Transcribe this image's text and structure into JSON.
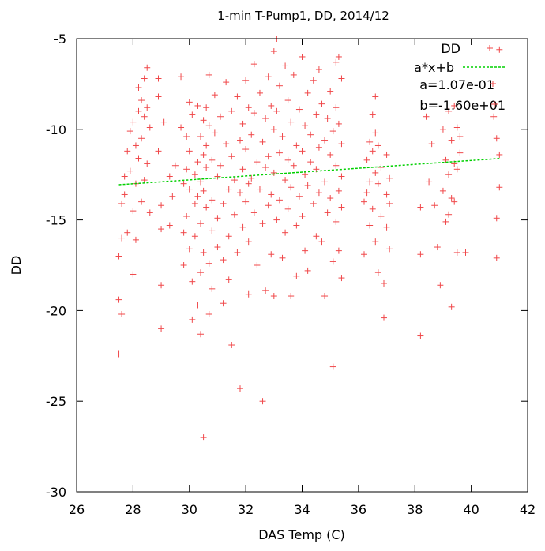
{
  "chart_data": {
    "type": "scatter",
    "title": "1-min T-Pump1, DD, 2014/12",
    "xlabel": "DAS Temp (C)",
    "ylabel": "DD",
    "xlim": [
      26,
      42
    ],
    "ylim": [
      -30,
      -5
    ],
    "xticks": [
      "26",
      "28",
      "30",
      "32",
      "34",
      "36",
      "38",
      "40",
      "42"
    ],
    "yticks": [
      "-5",
      "-10",
      "-15",
      "-20",
      "-25",
      "-30"
    ],
    "grid": false,
    "legend_position": "top-right",
    "legend": [
      {
        "label": "DD",
        "marker": "plus",
        "color": "#f0484a"
      },
      {
        "label": "a*x+b",
        "marker": "dashed-line",
        "color": "#00d000"
      },
      {
        "label": "a=1.07e-01",
        "marker": "plus",
        "color": "#f0484a"
      },
      {
        "label": "b=-1.60e+01",
        "marker": "plus",
        "color": "#f0484a"
      }
    ],
    "fit": {
      "a": 0.107,
      "b": -16.0,
      "x_range": [
        27.5,
        41.0
      ],
      "color": "#00d000"
    },
    "series": [
      {
        "name": "DD",
        "color": "#f0484a",
        "points": [
          [
            27.5,
            -22.4
          ],
          [
            27.5,
            -19.4
          ],
          [
            27.5,
            -17.0
          ],
          [
            27.6,
            -16.0
          ],
          [
            27.6,
            -14.1
          ],
          [
            27.7,
            -13.6
          ],
          [
            27.7,
            -12.6
          ],
          [
            27.8,
            -11.2
          ],
          [
            27.6,
            -20.2
          ],
          [
            27.8,
            -15.7
          ],
          [
            27.9,
            -10.1
          ],
          [
            27.9,
            -12.3
          ],
          [
            28.0,
            -9.6
          ],
          [
            28.0,
            -14.5
          ],
          [
            28.0,
            -18.0
          ],
          [
            28.1,
            -10.9
          ],
          [
            28.1,
            -13.0
          ],
          [
            28.1,
            -16.1
          ],
          [
            28.2,
            -9.0
          ],
          [
            28.2,
            -11.6
          ],
          [
            28.2,
            -7.7
          ],
          [
            28.3,
            -8.4
          ],
          [
            28.3,
            -10.5
          ],
          [
            28.3,
            -14.0
          ],
          [
            28.4,
            -7.2
          ],
          [
            28.4,
            -9.3
          ],
          [
            28.4,
            -12.8
          ],
          [
            28.5,
            -6.6
          ],
          [
            28.5,
            -8.8
          ],
          [
            28.5,
            -11.9
          ],
          [
            28.6,
            -9.9
          ],
          [
            28.6,
            -14.6
          ],
          [
            28.9,
            -7.2
          ],
          [
            28.9,
            -8.2
          ],
          [
            28.9,
            -11.2
          ],
          [
            29.0,
            -14.2
          ],
          [
            29.0,
            -15.5
          ],
          [
            29.0,
            -18.6
          ],
          [
            29.0,
            -21.0
          ],
          [
            29.1,
            -9.6
          ],
          [
            29.3,
            -12.6
          ],
          [
            29.3,
            -15.3
          ],
          [
            29.4,
            -13.7
          ],
          [
            29.5,
            -12.0
          ],
          [
            29.7,
            -7.1
          ],
          [
            29.7,
            -9.9
          ],
          [
            29.8,
            -13.0
          ],
          [
            29.8,
            -15.7
          ],
          [
            29.8,
            -17.5
          ],
          [
            29.9,
            -10.4
          ],
          [
            29.9,
            -12.2
          ],
          [
            29.9,
            -14.8
          ],
          [
            30.0,
            -8.5
          ],
          [
            30.0,
            -11.2
          ],
          [
            30.0,
            -13.3
          ],
          [
            30.0,
            -16.6
          ],
          [
            30.1,
            -18.4
          ],
          [
            30.1,
            -20.5
          ],
          [
            30.1,
            -9.2
          ],
          [
            30.2,
            -12.5
          ],
          [
            30.2,
            -14.1
          ],
          [
            30.2,
            -15.9
          ],
          [
            30.3,
            -8.7
          ],
          [
            30.3,
            -11.8
          ],
          [
            30.3,
            -13.7
          ],
          [
            30.3,
            -19.7
          ],
          [
            30.4,
            -10.4
          ],
          [
            30.4,
            -12.9
          ],
          [
            30.4,
            -15.2
          ],
          [
            30.4,
            -17.9
          ],
          [
            30.4,
            -21.3
          ],
          [
            30.5,
            -27.0
          ],
          [
            30.5,
            -9.5
          ],
          [
            30.5,
            -11.4
          ],
          [
            30.5,
            -13.4
          ],
          [
            30.5,
            -16.8
          ],
          [
            30.6,
            -8.8
          ],
          [
            30.6,
            -10.9
          ],
          [
            30.6,
            -12.1
          ],
          [
            30.6,
            -14.3
          ],
          [
            30.7,
            -7.0
          ],
          [
            30.7,
            -9.8
          ],
          [
            30.7,
            -17.4
          ],
          [
            30.7,
            -20.2
          ],
          [
            30.8,
            -11.7
          ],
          [
            30.8,
            -13.9
          ],
          [
            30.8,
            -15.6
          ],
          [
            30.8,
            -18.8
          ],
          [
            30.9,
            -8.1
          ],
          [
            30.9,
            -10.2
          ],
          [
            31.0,
            -12.6
          ],
          [
            31.0,
            -14.9
          ],
          [
            31.0,
            -16.5
          ],
          [
            31.1,
            -9.3
          ],
          [
            31.1,
            -12.0
          ],
          [
            31.2,
            -14.1
          ],
          [
            31.2,
            -17.2
          ],
          [
            31.2,
            -19.6
          ],
          [
            31.3,
            -7.4
          ],
          [
            31.3,
            -10.8
          ],
          [
            31.4,
            -13.3
          ],
          [
            31.4,
            -15.9
          ],
          [
            31.4,
            -18.3
          ],
          [
            31.5,
            -9.0
          ],
          [
            31.5,
            -11.5
          ],
          [
            31.5,
            -21.9
          ],
          [
            31.6,
            -12.8
          ],
          [
            31.6,
            -14.7
          ],
          [
            31.7,
            -8.2
          ],
          [
            31.7,
            -16.8
          ],
          [
            31.8,
            -10.6
          ],
          [
            31.8,
            -13.5
          ],
          [
            31.8,
            -24.3
          ],
          [
            31.9,
            -9.7
          ],
          [
            31.9,
            -12.2
          ],
          [
            31.9,
            -15.4
          ],
          [
            32.0,
            -7.3
          ],
          [
            32.0,
            -11.1
          ],
          [
            32.0,
            -14.0
          ],
          [
            32.1,
            -8.8
          ],
          [
            32.1,
            -13.0
          ],
          [
            32.1,
            -16.2
          ],
          [
            32.1,
            -19.1
          ],
          [
            32.2,
            -10.3
          ],
          [
            32.2,
            -12.7
          ],
          [
            32.3,
            -6.4
          ],
          [
            32.3,
            -9.1
          ],
          [
            32.3,
            -14.6
          ],
          [
            32.4,
            -11.8
          ],
          [
            32.4,
            -17.5
          ],
          [
            32.5,
            -8.0
          ],
          [
            32.5,
            -13.3
          ],
          [
            32.6,
            -10.7
          ],
          [
            32.6,
            -15.2
          ],
          [
            32.6,
            -25.0
          ],
          [
            32.7,
            -9.4
          ],
          [
            32.7,
            -12.1
          ],
          [
            32.7,
            -18.9
          ],
          [
            32.8,
            -7.1
          ],
          [
            32.8,
            -11.5
          ],
          [
            32.8,
            -14.2
          ],
          [
            32.9,
            -8.7
          ],
          [
            32.9,
            -13.6
          ],
          [
            32.9,
            -16.9
          ],
          [
            33.0,
            -5.7
          ],
          [
            33.0,
            -10.0
          ],
          [
            33.0,
            -12.4
          ],
          [
            33.0,
            -19.2
          ],
          [
            33.1,
            -5.0
          ],
          [
            33.1,
            -9.0
          ],
          [
            33.1,
            -15.0
          ],
          [
            33.2,
            -7.6
          ],
          [
            33.2,
            -11.3
          ],
          [
            33.2,
            -13.9
          ],
          [
            33.3,
            -10.4
          ],
          [
            33.3,
            -17.1
          ],
          [
            33.4,
            -6.5
          ],
          [
            33.4,
            -12.8
          ],
          [
            33.4,
            -15.7
          ],
          [
            33.5,
            -8.4
          ],
          [
            33.5,
            -11.7
          ],
          [
            33.5,
            -14.4
          ],
          [
            33.6,
            -9.6
          ],
          [
            33.6,
            -13.2
          ],
          [
            33.6,
            -19.2
          ],
          [
            33.7,
            -7.0
          ],
          [
            33.7,
            -12.0
          ],
          [
            33.8,
            -10.9
          ],
          [
            33.8,
            -15.3
          ],
          [
            33.8,
            -18.1
          ],
          [
            33.9,
            -8.9
          ],
          [
            33.9,
            -13.7
          ],
          [
            34.0,
            -6.0
          ],
          [
            34.0,
            -11.2
          ],
          [
            34.0,
            -14.8
          ],
          [
            34.1,
            -9.8
          ],
          [
            34.1,
            -12.5
          ],
          [
            34.1,
            -16.7
          ],
          [
            34.2,
            -8.0
          ],
          [
            34.2,
            -13.1
          ],
          [
            34.2,
            -17.8
          ],
          [
            34.3,
            -10.3
          ],
          [
            34.3,
            -11.8
          ],
          [
            34.4,
            -7.3
          ],
          [
            34.4,
            -14.1
          ],
          [
            34.5,
            -9.2
          ],
          [
            34.5,
            -12.2
          ],
          [
            34.5,
            -15.9
          ],
          [
            34.6,
            -6.7
          ],
          [
            34.6,
            -11.0
          ],
          [
            34.6,
            -13.5
          ],
          [
            34.7,
            -8.6
          ],
          [
            34.7,
            -16.2
          ],
          [
            34.8,
            -10.6
          ],
          [
            34.8,
            -12.9
          ],
          [
            34.8,
            -19.2
          ],
          [
            34.9,
            -9.4
          ],
          [
            34.9,
            -14.6
          ],
          [
            35.0,
            -7.9
          ],
          [
            35.0,
            -11.4
          ],
          [
            35.0,
            -13.8
          ],
          [
            35.1,
            -10.1
          ],
          [
            35.1,
            -17.3
          ],
          [
            35.1,
            -23.1
          ],
          [
            35.2,
            -6.3
          ],
          [
            35.2,
            -8.8
          ],
          [
            35.2,
            -12.0
          ],
          [
            35.2,
            -15.1
          ],
          [
            35.3,
            -6.0
          ],
          [
            35.3,
            -9.7
          ],
          [
            35.3,
            -13.4
          ],
          [
            35.3,
            -16.7
          ],
          [
            35.4,
            -7.2
          ],
          [
            35.4,
            -10.8
          ],
          [
            35.4,
            -12.6
          ],
          [
            35.4,
            -14.3
          ],
          [
            35.4,
            -18.2
          ],
          [
            36.2,
            -14.0
          ],
          [
            36.2,
            -16.9
          ],
          [
            36.3,
            -11.7
          ],
          [
            36.3,
            -13.5
          ],
          [
            36.4,
            -10.7
          ],
          [
            36.4,
            -12.9
          ],
          [
            36.4,
            -15.3
          ],
          [
            36.5,
            -9.2
          ],
          [
            36.5,
            -11.2
          ],
          [
            36.5,
            -14.4
          ],
          [
            36.6,
            -8.2
          ],
          [
            36.6,
            -10.2
          ],
          [
            36.6,
            -12.4
          ],
          [
            36.6,
            -16.2
          ],
          [
            36.7,
            -10.9
          ],
          [
            36.7,
            -13.0
          ],
          [
            36.7,
            -17.9
          ],
          [
            36.8,
            -12.1
          ],
          [
            36.8,
            -14.8
          ],
          [
            36.9,
            -18.5
          ],
          [
            36.9,
            -20.4
          ],
          [
            37.0,
            -11.4
          ],
          [
            37.0,
            -13.6
          ],
          [
            37.0,
            -15.4
          ],
          [
            37.1,
            -12.7
          ],
          [
            37.1,
            -14.1
          ],
          [
            37.1,
            -16.6
          ],
          [
            38.2,
            -14.3
          ],
          [
            38.2,
            -16.9
          ],
          [
            38.2,
            -21.4
          ],
          [
            38.4,
            -9.3
          ],
          [
            38.5,
            -12.9
          ],
          [
            38.6,
            -10.8
          ],
          [
            38.7,
            -14.2
          ],
          [
            38.8,
            -16.5
          ],
          [
            38.9,
            -18.6
          ],
          [
            39.0,
            -10.0
          ],
          [
            39.0,
            -13.4
          ],
          [
            39.1,
            -11.7
          ],
          [
            39.1,
            -15.1
          ],
          [
            39.2,
            -9.0
          ],
          [
            39.2,
            -12.5
          ],
          [
            39.2,
            -14.7
          ],
          [
            39.3,
            -10.6
          ],
          [
            39.3,
            -13.8
          ],
          [
            39.3,
            -19.8
          ],
          [
            39.4,
            -8.7
          ],
          [
            39.4,
            -11.9
          ],
          [
            39.4,
            -14.0
          ],
          [
            39.5,
            -9.9
          ],
          [
            39.5,
            -12.2
          ],
          [
            39.5,
            -16.8
          ],
          [
            39.6,
            -10.4
          ],
          [
            39.6,
            -11.3
          ],
          [
            39.8,
            -16.8
          ],
          [
            40.8,
            -9.3
          ],
          [
            40.9,
            -10.5
          ],
          [
            40.9,
            -14.9
          ],
          [
            40.9,
            -17.1
          ],
          [
            41.0,
            -11.4
          ],
          [
            41.0,
            -13.2
          ],
          [
            41.0,
            -5.6
          ]
        ]
      }
    ]
  }
}
